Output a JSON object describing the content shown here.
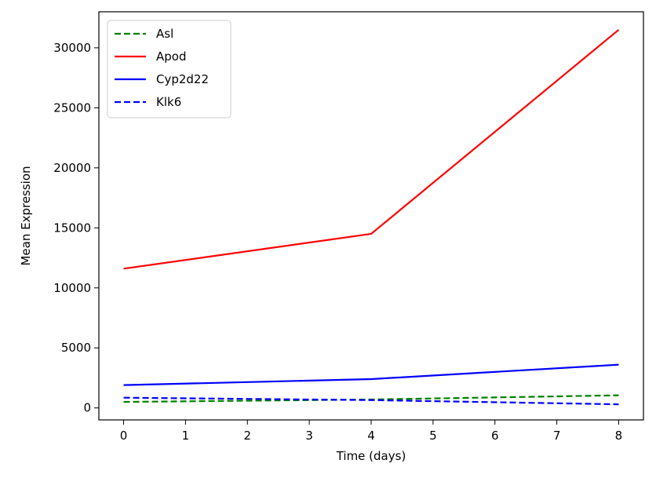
{
  "chart_data": {
    "type": "line",
    "title": "",
    "xlabel": "Time (days)",
    "ylabel": "Mean Expression",
    "xlim": [
      -0.4,
      8.4
    ],
    "ylim": [
      -1000,
      33000
    ],
    "xticks": [
      0,
      1,
      2,
      3,
      4,
      5,
      6,
      7,
      8
    ],
    "xtick_labels": [
      "0",
      "1",
      "2",
      "3",
      "4",
      "5",
      "6",
      "7",
      "8"
    ],
    "yticks": [
      0,
      5000,
      10000,
      15000,
      20000,
      25000,
      30000
    ],
    "ytick_labels": [
      "0",
      "5000",
      "10000",
      "15000",
      "20000",
      "25000",
      "30000"
    ],
    "x": [
      0,
      4,
      8
    ],
    "grid": false,
    "legend_position": "top-left",
    "series": [
      {
        "name": "Asl",
        "values": [
          500,
          700,
          1050
        ],
        "color": "#008000",
        "linestyle": "dashed"
      },
      {
        "name": "Apod",
        "values": [
          11600,
          14500,
          31500
        ],
        "color": "#ff0000",
        "linestyle": "solid"
      },
      {
        "name": "Cyp2d22",
        "values": [
          1900,
          2400,
          3600
        ],
        "color": "#0000ff",
        "linestyle": "solid"
      },
      {
        "name": "Klk6",
        "values": [
          850,
          650,
          300
        ],
        "color": "#0000ff",
        "linestyle": "dashed"
      }
    ]
  }
}
